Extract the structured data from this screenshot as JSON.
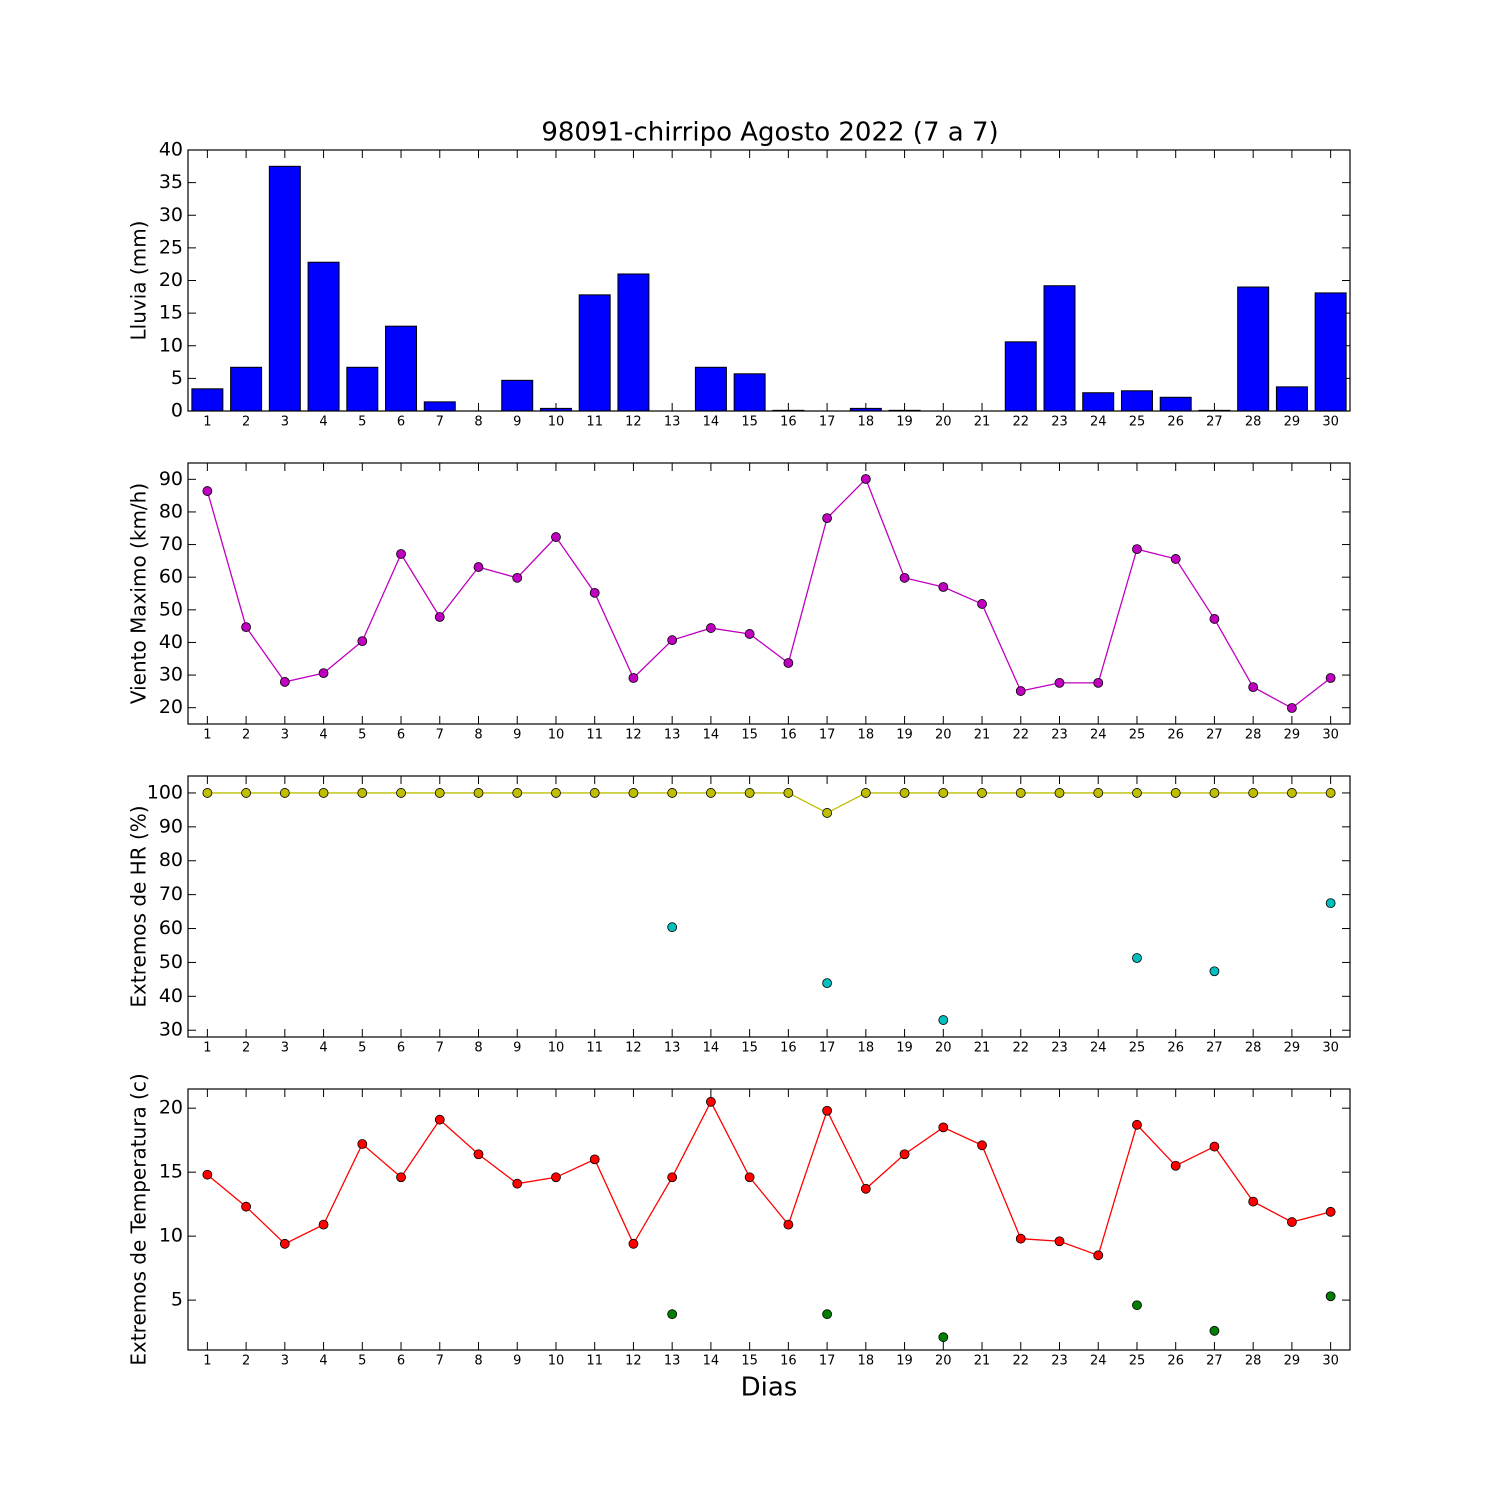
{
  "chart_data": [
    {
      "type": "bar",
      "title": "98091-chirripo Agosto 2022  (7 a 7)",
      "y_label": "Lluvia (mm)",
      "categories": [
        "1",
        "2",
        "3",
        "4",
        "5",
        "6",
        "7",
        "8",
        "9",
        "10",
        "11",
        "12",
        "13",
        "14",
        "15",
        "16",
        "17",
        "18",
        "19",
        "20",
        "21",
        "22",
        "23",
        "24",
        "25",
        "26",
        "27",
        "28",
        "29",
        "30"
      ],
      "values": [
        3.4,
        6.7,
        37.5,
        22.8,
        6.7,
        13.0,
        1.4,
        0,
        4.7,
        0.4,
        17.8,
        21.0,
        0,
        6.7,
        5.7,
        0.1,
        0,
        0.4,
        0.1,
        0,
        0,
        10.6,
        19.2,
        2.8,
        3.1,
        2.1,
        0.1,
        19.0,
        3.7,
        18.1
      ],
      "color": "#0000ff",
      "ylim": [
        0,
        40
      ],
      "yticks": [
        0,
        5,
        10,
        15,
        20,
        25,
        30,
        35,
        40
      ]
    },
    {
      "type": "line",
      "y_label": "Viento Maximo (km/h)",
      "categories": [
        "1",
        "2",
        "3",
        "4",
        "5",
        "6",
        "7",
        "8",
        "9",
        "10",
        "11",
        "12",
        "13",
        "14",
        "15",
        "16",
        "17",
        "18",
        "19",
        "20",
        "21",
        "22",
        "23",
        "24",
        "25",
        "26",
        "27",
        "28",
        "29",
        "30"
      ],
      "series": [
        {
          "color": "#bf00bf",
          "values": [
            86.4,
            44.7,
            27.9,
            30.6,
            40.4,
            67.1,
            47.8,
            63.1,
            59.8,
            72.3,
            55.2,
            29.1,
            40.7,
            44.4,
            42.6,
            33.7,
            78.1,
            90.1,
            59.8,
            57.0,
            51.8,
            25.1,
            27.6,
            27.6,
            68.6,
            65.6,
            47.2,
            26.3,
            19.9,
            29.1
          ]
        }
      ],
      "ylim": [
        15,
        95
      ],
      "yticks": [
        20,
        30,
        40,
        50,
        60,
        70,
        80,
        90
      ]
    },
    {
      "type": "line",
      "y_label": "Extremos de HR (%)",
      "categories": [
        "1",
        "2",
        "3",
        "4",
        "5",
        "6",
        "7",
        "8",
        "9",
        "10",
        "11",
        "12",
        "13",
        "14",
        "15",
        "16",
        "17",
        "18",
        "19",
        "20",
        "21",
        "22",
        "23",
        "24",
        "25",
        "26",
        "27",
        "28",
        "29",
        "30"
      ],
      "series": [
        {
          "color": "#bfbf00",
          "values": [
            100,
            100,
            100,
            100,
            100,
            100,
            100,
            100,
            100,
            100,
            100,
            100,
            100,
            100,
            100,
            100,
            94.1,
            100,
            100,
            100,
            100,
            100,
            100,
            100,
            100,
            100,
            100,
            100,
            100,
            100
          ]
        },
        {
          "color": "#00bfbf",
          "values": [
            null,
            null,
            null,
            null,
            null,
            null,
            null,
            null,
            null,
            null,
            null,
            null,
            60.4,
            null,
            null,
            null,
            43.9,
            null,
            null,
            33.0,
            null,
            null,
            null,
            null,
            51.3,
            null,
            47.4,
            null,
            null,
            67.5
          ]
        }
      ],
      "ylim": [
        28,
        105
      ],
      "yticks": [
        30,
        40,
        50,
        60,
        70,
        80,
        90,
        100
      ]
    },
    {
      "type": "line",
      "y_label": "Extremos de Temperatura (c)",
      "x_label": "Dias",
      "categories": [
        "1",
        "2",
        "3",
        "4",
        "5",
        "6",
        "7",
        "8",
        "9",
        "10",
        "11",
        "12",
        "13",
        "14",
        "15",
        "16",
        "17",
        "18",
        "19",
        "20",
        "21",
        "22",
        "23",
        "24",
        "25",
        "26",
        "27",
        "28",
        "29",
        "30"
      ],
      "series": [
        {
          "color": "#ff0000",
          "values": [
            14.8,
            12.3,
            9.4,
            10.9,
            17.2,
            14.6,
            19.1,
            16.4,
            14.1,
            14.6,
            16.0,
            9.4,
            14.6,
            20.5,
            14.6,
            10.9,
            19.8,
            13.7,
            16.4,
            18.5,
            17.1,
            9.8,
            9.6,
            8.5,
            18.7,
            15.5,
            17.0,
            12.7,
            11.1,
            11.9
          ]
        },
        {
          "color": "#007f00",
          "values": [
            null,
            null,
            null,
            null,
            null,
            null,
            null,
            null,
            null,
            null,
            null,
            null,
            3.9,
            null,
            null,
            null,
            3.9,
            null,
            null,
            2.1,
            null,
            null,
            null,
            null,
            4.6,
            null,
            2.6,
            null,
            null,
            5.3
          ]
        }
      ],
      "ylim": [
        1.1,
        21.5
      ],
      "yticks": [
        5,
        10,
        15,
        20
      ]
    }
  ]
}
